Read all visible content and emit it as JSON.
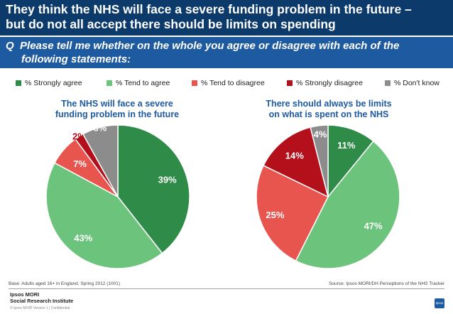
{
  "header": {
    "title_line1": "They think the NHS will face a severe funding problem in the future –",
    "title_line2": "but do not all accept there should be limits on spending",
    "question_prefix": "Q",
    "question_line1": "Please tell me whether on the whole you agree or disagree with each of the",
    "question_line2": "following statements:"
  },
  "legend": [
    {
      "label": "% Strongly agree",
      "color": "#2e8b48"
    },
    {
      "label": "% Tend to agree",
      "color": "#6cc47c"
    },
    {
      "label": "% Tend to disagree",
      "color": "#e8554f"
    },
    {
      "label": "% Strongly disagree",
      "color": "#b3101b"
    },
    {
      "label": "% Don't know",
      "color": "#8c8c8c"
    }
  ],
  "chart_data": [
    {
      "type": "pie",
      "title_line1": "The NHS will face a severe",
      "title_line2": "funding problem in the future",
      "categories": [
        "% Strongly agree",
        "% Tend to agree",
        "% Tend to disagree",
        "% Strongly disagree",
        "% Don't know"
      ],
      "values": [
        39,
        43,
        7,
        2,
        8
      ],
      "labels": [
        "39%",
        "43%",
        "7%",
        "2%",
        "8%"
      ],
      "start": "12 o'clock, clockwise"
    },
    {
      "type": "pie",
      "title_line1": "There should always be limits",
      "title_line2": "on what is spent on the NHS",
      "categories": [
        "% Strongly agree",
        "% Tend to agree",
        "% Tend to disagree",
        "% Strongly disagree",
        "% Don't know"
      ],
      "values": [
        11,
        47,
        25,
        14,
        4
      ],
      "labels": [
        "11%",
        "47%",
        "25%",
        "14%",
        "4%"
      ],
      "start": "12 o'clock, clockwise"
    }
  ],
  "footer": {
    "base_note": "Base: Adults aged 16+ in England, Spring 2012 (1001)",
    "source_note": "Source: Ipsos MORI/DH Perceptions of the NHS Tracker",
    "logo_line1": "Ipsos MORI",
    "logo_line2": "Social Research Institute",
    "copyright": "© Ipsos MORI     Version 1 | Confidential",
    "badge": "Ipsos"
  }
}
